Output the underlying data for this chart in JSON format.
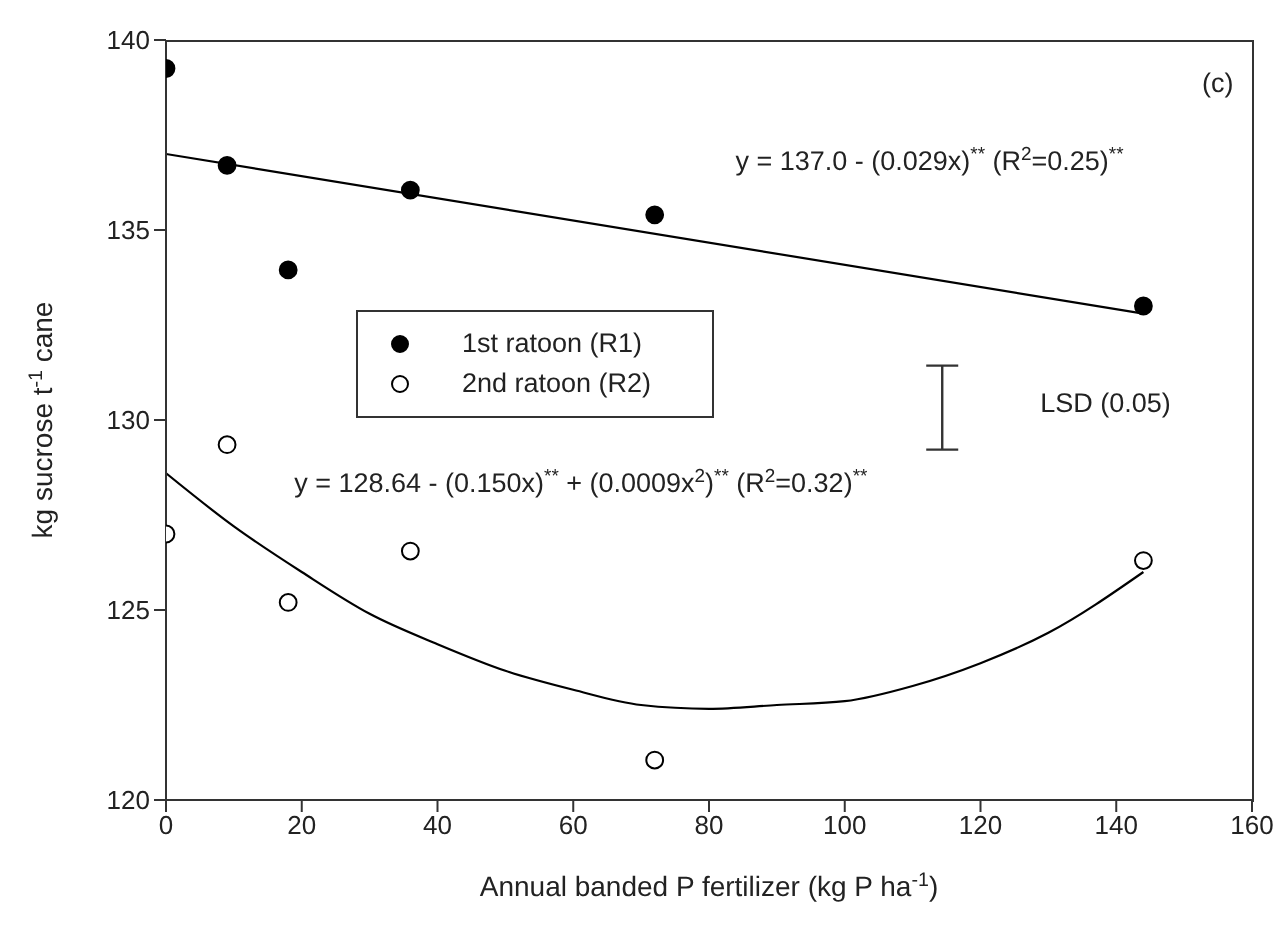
{
  "chart_data": {
    "type": "scatter",
    "xlabel": "Annual banded P fertilizer (kg P ha$^{-1}$)",
    "ylabel": "kg sucrose t$^{-1}$ cane",
    "xlim": [
      0,
      160
    ],
    "xticks": [
      0,
      20,
      40,
      60,
      80,
      100,
      120,
      140,
      160
    ],
    "ylim": [
      120,
      140
    ],
    "yticks": [
      120,
      125,
      130,
      135,
      140
    ],
    "grid": false,
    "legend": "left",
    "marker": "circle",
    "series": [
      {
        "name": "1st ratoon (R1)",
        "color": "#000000",
        "x": [
          0,
          9,
          18,
          36,
          72,
          144
        ],
        "values": [
          139.25,
          136.7,
          133.95,
          136.05,
          135.4,
          133.0
        ]
      },
      {
        "name": "2nd ratoon (R2)",
        "color": "#000000",
        "x": [
          0,
          9,
          18,
          36,
          72,
          144
        ],
        "values": [
          127.0,
          129.35,
          125.2,
          126.55,
          121.05,
          126.3
        ]
      },
      {
        "type": "line",
        "color": "#000000",
        "marker": "none",
        "x": [
          0,
          144
        ],
        "values": [
          137.0,
          132.8
        ]
      },
      {
        "type": "line",
        "color": "#000000",
        "marker": "none",
        "x": [
          0,
          10,
          20,
          30,
          40,
          50,
          60,
          70,
          80,
          90,
          100,
          110,
          120,
          130,
          144
        ],
        "values": [
          128.6,
          127.2,
          126.0,
          124.9,
          124.1,
          123.4,
          122.9,
          122.5,
          122.4,
          122.5,
          122.6,
          123.0,
          123.6,
          124.4,
          126.0
        ]
      }
    ],
    "annotations": [
      "(c)",
      "y = 137.0 - (0.029x)$^{**}$ (R$^{2}$=0.25)$^{**}$",
      "y = 128.64 - (0.150x)$^{**}$ + (0.0009x$^{2}$)$^{**}$ (R$^{2}$=0.32)$^{**}$",
      "LSD (0.05)"
    ]
  }
}
